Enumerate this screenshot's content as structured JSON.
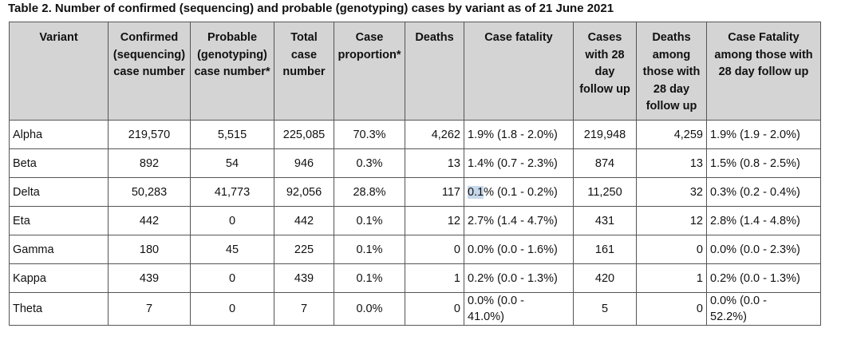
{
  "title": "Table 2. Number of confirmed (sequencing) and probable (genotyping) cases by variant as of 21 June 2021",
  "headers": [
    {
      "label": "Variant"
    },
    {
      "label": "Confirmed (sequencing) case number"
    },
    {
      "label": "Probable (genotyping) case number*"
    },
    {
      "label": "Total case number"
    },
    {
      "label": "Case proportion*"
    },
    {
      "label": "Deaths"
    },
    {
      "label": "Case fatality"
    },
    {
      "label": "Cases with 28 day follow up"
    },
    {
      "label": "Deaths among those with 28 day follow up"
    },
    {
      "label": "Case Fatality among those with 28 day follow up"
    }
  ],
  "rows": [
    {
      "variant": "Alpha",
      "confirmed": "219,570",
      "probable": "5,515",
      "total": "225,085",
      "proportion": "70.3%",
      "deaths": "4,262",
      "fatality": "1.9% (1.8 - 2.0%)",
      "cases28": "219,948",
      "deaths28": "4,259",
      "fatality28": "1.9% (1.9 - 2.0%)"
    },
    {
      "variant": "Beta",
      "confirmed": "892",
      "probable": "54",
      "total": "946",
      "proportion": "0.3%",
      "deaths": "13",
      "fatality": "1.4% (0.7 - 2.3%)",
      "cases28": "874",
      "deaths28": "13",
      "fatality28": "1.5% (0.8 - 2.5%)"
    },
    {
      "variant": "Delta",
      "confirmed": "50,283",
      "probable": "41,773",
      "total": "92,056",
      "proportion": "28.8%",
      "deaths": "117",
      "fatality_sel": "0.1",
      "fatality_rest": "% (0.1 - 0.2%)",
      "cases28": "11,250",
      "deaths28": "32",
      "fatality28": "0.3% (0.2 - 0.4%)"
    },
    {
      "variant": "Eta",
      "confirmed": "442",
      "probable": "0",
      "total": "442",
      "proportion": "0.1%",
      "deaths": "12",
      "fatality": "2.7% (1.4 - 4.7%)",
      "cases28": "431",
      "deaths28": "12",
      "fatality28": "2.8% (1.4 - 4.8%)"
    },
    {
      "variant": "Gamma",
      "confirmed": "180",
      "probable": "45",
      "total": "225",
      "proportion": "0.1%",
      "deaths": "0",
      "fatality": "0.0% (0.0 - 1.6%)",
      "cases28": "161",
      "deaths28": "0",
      "fatality28": "0.0% (0.0 - 2.3%)"
    },
    {
      "variant": "Kappa",
      "confirmed": "439",
      "probable": "0",
      "total": "439",
      "proportion": "0.1%",
      "deaths": "1",
      "fatality": "0.2% (0.0 - 1.3%)",
      "cases28": "420",
      "deaths28": "1",
      "fatality28": "0.2% (0.0 - 1.3%)"
    },
    {
      "variant": "Theta",
      "confirmed": "7",
      "probable": "0",
      "total": "7",
      "proportion": "0.0%",
      "deaths": "0",
      "fatality_l1": "0.0% (0.0 -",
      "fatality_l2": "41.0%)",
      "cases28": "5",
      "deaths28": "0",
      "fatality28_l1": "0.0% (0.0 -",
      "fatality28_l2": "52.2%)"
    }
  ],
  "colors": {
    "header_bg": "#d4d4d4",
    "border": "#555555",
    "selection": "#c6d8ec"
  }
}
